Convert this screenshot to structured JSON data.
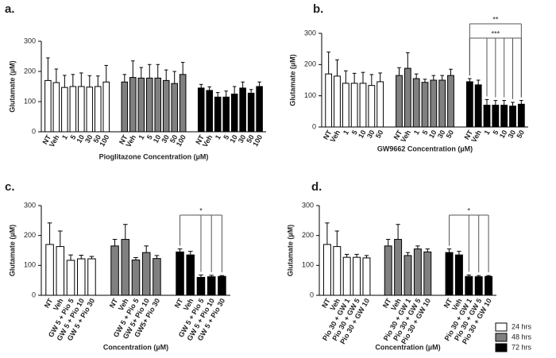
{
  "chart_data": [
    {
      "type": "bar",
      "panel_label": "a.",
      "ylabel": "Glutamate (µM)",
      "xlabel": "Pioglitazone Concentration (µM)",
      "ylim": [
        0,
        300
      ],
      "yticks": [
        0,
        100,
        200,
        300
      ],
      "series": [
        {
          "color": "#ffffff",
          "categories": [
            "NT",
            "Veh",
            "1",
            "5",
            "10",
            "30",
            "50",
            "100"
          ],
          "values": [
            170,
            163,
            147,
            150,
            150,
            148,
            150,
            165
          ],
          "errors": [
            75,
            45,
            40,
            40,
            45,
            38,
            35,
            55
          ]
        },
        {
          "color": "#808080",
          "categories": [
            "NT",
            "Veh",
            "1",
            "5",
            "10",
            "30",
            "50",
            "100"
          ],
          "values": [
            165,
            180,
            178,
            178,
            178,
            170,
            160,
            190
          ],
          "errors": [
            25,
            55,
            35,
            45,
            45,
            35,
            40,
            40
          ]
        },
        {
          "color": "#000000",
          "categories": [
            "NT",
            "Veh",
            "1",
            "5",
            "10",
            "30",
            "50",
            "100"
          ],
          "values": [
            145,
            137,
            115,
            115,
            125,
            145,
            128,
            150
          ],
          "errors": [
            12,
            12,
            15,
            20,
            25,
            20,
            12,
            15
          ]
        }
      ],
      "annotations": []
    },
    {
      "type": "bar",
      "panel_label": "b.",
      "ylabel": "Glutamate (µM)",
      "xlabel": "GW9662 Concentration (µM)",
      "ylim": [
        0,
        300
      ],
      "yticks": [
        0,
        100,
        200,
        300
      ],
      "series": [
        {
          "color": "#ffffff",
          "categories": [
            "NT",
            "Veh",
            "1",
            "5",
            "10",
            "30",
            "50"
          ],
          "values": [
            170,
            163,
            140,
            140,
            140,
            133,
            145
          ],
          "errors": [
            70,
            52,
            40,
            32,
            35,
            35,
            28
          ]
        },
        {
          "color": "#808080",
          "categories": [
            "NT",
            "Veh",
            "1",
            "5",
            "10",
            "30",
            "50"
          ],
          "values": [
            165,
            188,
            155,
            143,
            150,
            150,
            165
          ],
          "errors": [
            25,
            50,
            15,
            10,
            15,
            15,
            20
          ]
        },
        {
          "color": "#000000",
          "categories": [
            "NT",
            "Veh",
            "1",
            "5",
            "10",
            "30",
            "50"
          ],
          "values": [
            145,
            135,
            70,
            70,
            70,
            67,
            73
          ],
          "errors": [
            10,
            15,
            18,
            15,
            15,
            12,
            12
          ]
        }
      ],
      "annotations": [
        "**",
        "***"
      ]
    },
    {
      "type": "bar",
      "panel_label": "c.",
      "ylabel": "Glutamate (µM)",
      "xlabel": "Concentration (µM)",
      "ylim": [
        0,
        300
      ],
      "yticks": [
        0,
        100,
        200,
        300
      ],
      "series": [
        {
          "color": "#ffffff",
          "categories": [
            "NT",
            "Veh",
            "GW 5 + Pio 5",
            "GW 5 + Pio 10",
            "GW 5 + Pio 30"
          ],
          "values": [
            170,
            163,
            117,
            122,
            122
          ],
          "errors": [
            72,
            52,
            18,
            12,
            8
          ]
        },
        {
          "color": "#808080",
          "categories": [
            "NT",
            "Veh",
            "GW 5 + Pio 5",
            "GW 5+ Pio 10",
            "GW5+ Pio 30"
          ],
          "values": [
            165,
            187,
            118,
            143,
            123
          ],
          "errors": [
            22,
            50,
            8,
            22,
            10
          ]
        },
        {
          "color": "#000000",
          "categories": [
            "NT",
            "Veh",
            "GW 5 + Pio 5",
            "GW 5 + Pio 10",
            "GW 5 + Pio 30"
          ],
          "values": [
            145,
            135,
            60,
            62,
            63
          ],
          "errors": [
            10,
            12,
            8,
            5,
            3
          ]
        }
      ],
      "annotations": [
        "*"
      ]
    },
    {
      "type": "bar",
      "panel_label": "d.",
      "ylabel": "Glutamate (µM)",
      "xlabel": "Concentration (µM)",
      "ylim": [
        0,
        300
      ],
      "yticks": [
        0,
        100,
        200,
        300
      ],
      "series": [
        {
          "color": "#ffffff",
          "categories": [
            "NT",
            "Veh",
            "Pio 30 + GW 1",
            "Pio 30 + GW 5",
            "Pio 30 + GW 10"
          ],
          "values": [
            170,
            163,
            127,
            127,
            125
          ],
          "errors": [
            72,
            52,
            10,
            10,
            8
          ]
        },
        {
          "color": "#808080",
          "categories": [
            "NT",
            "Veh",
            "Pio 30 + GW 1",
            "Pio 30 + GW 5",
            "Pio 30 + GW 10"
          ],
          "values": [
            165,
            187,
            133,
            155,
            145
          ],
          "errors": [
            22,
            50,
            10,
            10,
            10
          ]
        },
        {
          "color": "#000000",
          "categories": [
            "NT",
            "Veh",
            "Pio 30 + GW 1",
            "Pio 30 + GW 5",
            "Pio 30 + GW 10"
          ],
          "values": [
            143,
            135,
            63,
            62,
            63
          ],
          "errors": [
            12,
            12,
            5,
            4,
            3
          ]
        }
      ],
      "annotations": [
        "*"
      ]
    }
  ],
  "legend": [
    {
      "name": "24 hrs",
      "color": "#ffffff"
    },
    {
      "name": "48 hrs",
      "color": "#808080"
    },
    {
      "name": "72 hrs",
      "color": "#000000"
    }
  ]
}
